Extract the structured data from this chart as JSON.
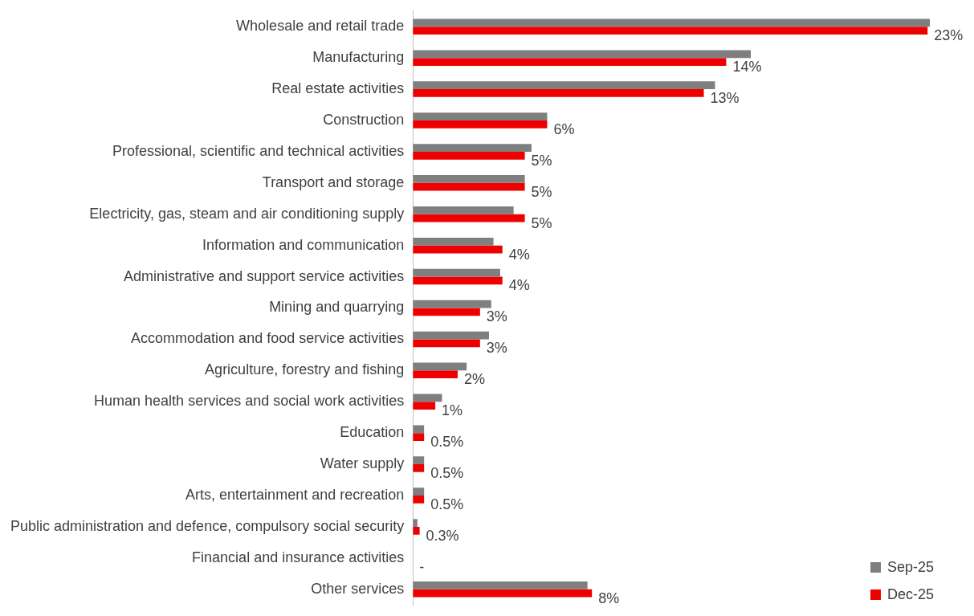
{
  "chart_data": {
    "type": "bar",
    "orientation": "horizontal",
    "legend": "bottom right",
    "categories": [
      "Wholesale and retail trade",
      "Manufacturing",
      "Real estate activities",
      "Construction",
      "Professional, scientific and technical activities",
      "Transport and storage",
      "Electricity, gas, steam and air conditioning supply",
      "Information and communication",
      "Administrative and support service activities",
      "Mining and quarrying",
      "Accommodation and food service activities",
      "Agriculture, forestry and fishing",
      "Human health services and social work activities",
      "Education",
      "Water supply",
      "Arts, entertainment and recreation",
      "Public administration and defence, compulsory social security",
      "Financial and insurance activities",
      "Other services"
    ],
    "series": [
      {
        "name": "Sep-25",
        "color": "#7f7f7f",
        "values": [
          23.1,
          15.1,
          13.5,
          6.0,
          5.3,
          5.0,
          4.5,
          3.6,
          3.9,
          3.5,
          3.4,
          2.4,
          1.3,
          0.5,
          0.5,
          0.5,
          0.2,
          0,
          7.8
        ]
      },
      {
        "name": "Dec-25",
        "color": "#ee0000",
        "values": [
          23,
          14,
          13,
          6,
          5,
          5,
          5,
          4,
          4,
          3,
          3,
          2,
          1,
          0.5,
          0.5,
          0.5,
          0.3,
          0,
          8
        ],
        "value_labels": [
          "23%",
          "14%",
          "13%",
          "6%",
          "5%",
          "5%",
          "5%",
          "4%",
          "4%",
          "3%",
          "3%",
          "2%",
          "1%",
          "0.5%",
          "0.5%",
          "0.5%",
          "0.3%",
          "-",
          "8%"
        ]
      }
    ]
  }
}
